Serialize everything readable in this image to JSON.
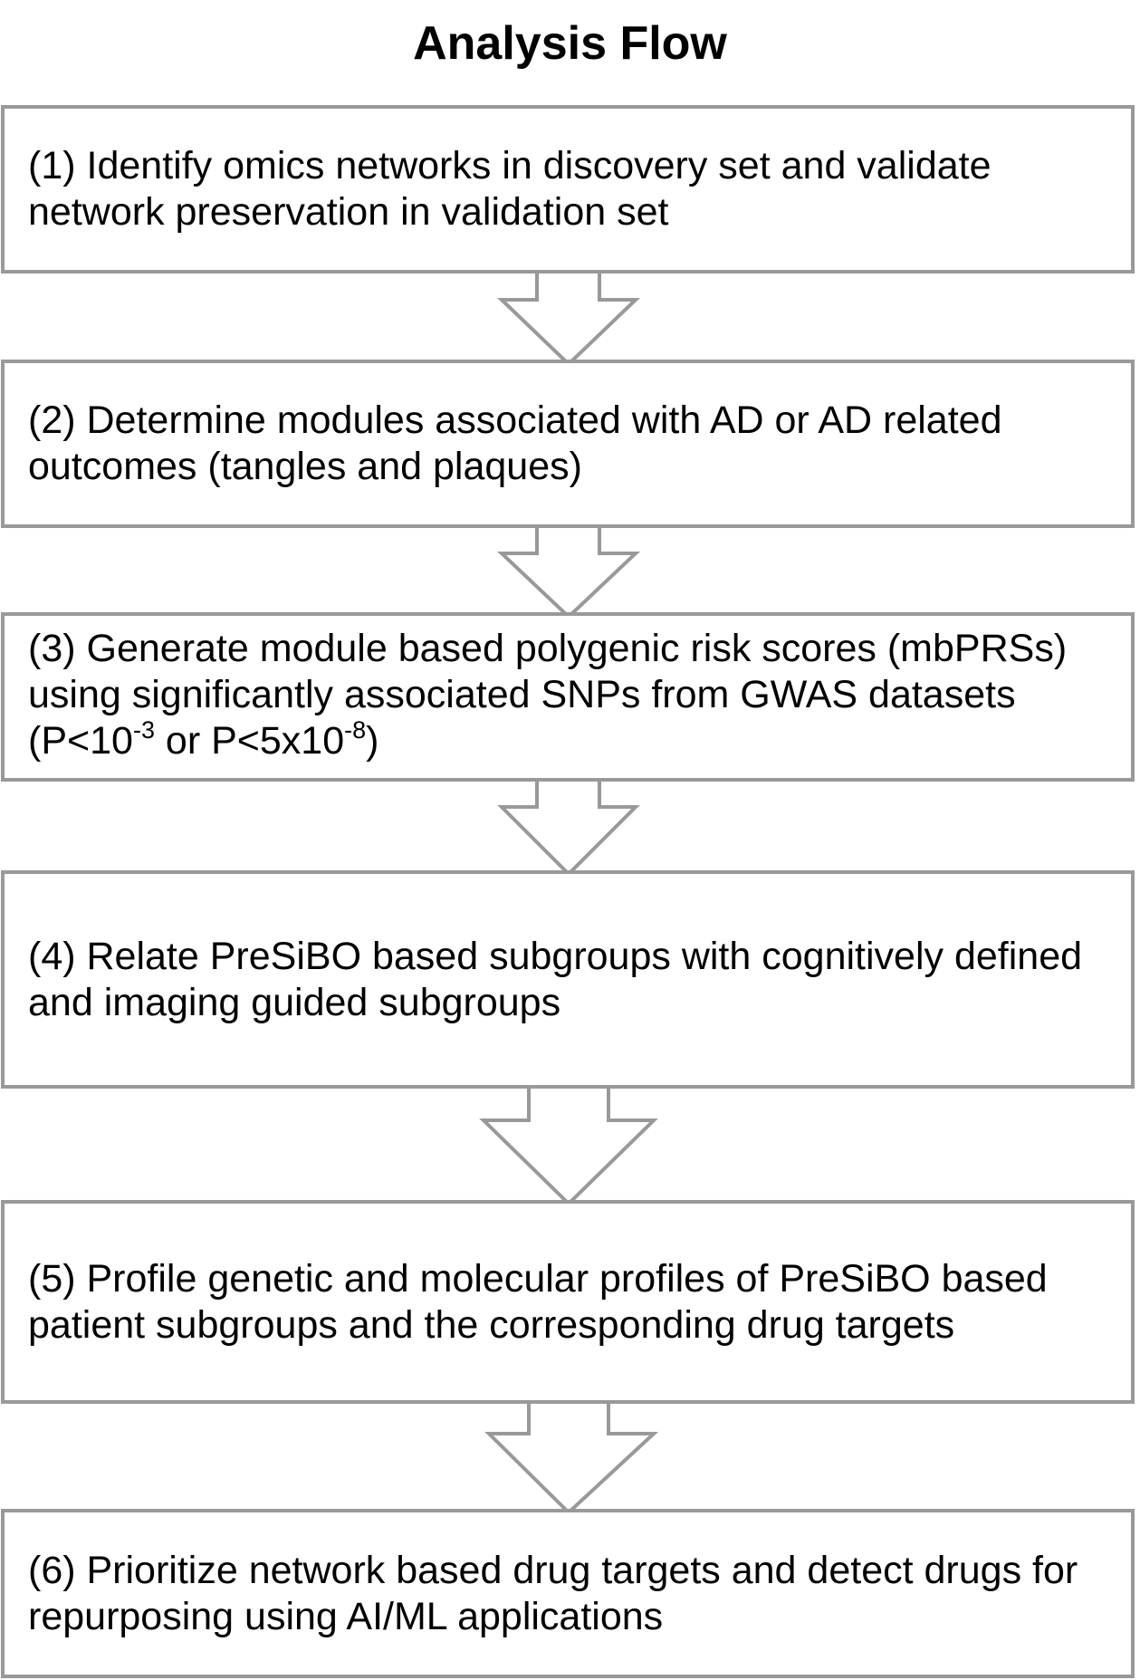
{
  "diagram": {
    "title": "Analysis Flow",
    "type": "flowchart",
    "direction": "top-to-bottom",
    "colors": {
      "box_border": "#999999",
      "arrow_border": "#999999",
      "background": "#ffffff",
      "text": "#000000"
    },
    "steps": [
      {
        "id": 1,
        "label": "(1) Identify omics networks in discovery set and validate network preservation in validation set"
      },
      {
        "id": 2,
        "label": "(2) Determine modules associated with AD or AD related outcomes (tangles and plaques)"
      },
      {
        "id": 3,
        "label_main": "(3) Generate module based polygenic risk scores (mbPRSs) using significantly associated SNPs from GWAS datasets (P<10",
        "exponent_1": "-3",
        "label_mid": " or P<5x10",
        "exponent_2": "-8",
        "label_end": ")"
      },
      {
        "id": 4,
        "label": "(4) Relate PreSiBO based subgroups with cognitively defined and imaging guided subgroups"
      },
      {
        "id": 5,
        "label": "(5) Profile genetic and molecular profiles of PreSiBO based patient subgroups and the corresponding drug targets"
      },
      {
        "id": 6,
        "label": "(6) Prioritize network based drug targets and detect drugs for repurposing using AI/ML applications"
      }
    ],
    "connections": [
      {
        "from": 1,
        "to": 2
      },
      {
        "from": 2,
        "to": 3
      },
      {
        "from": 3,
        "to": 4
      },
      {
        "from": 4,
        "to": 5
      },
      {
        "from": 5,
        "to": 6
      }
    ]
  }
}
